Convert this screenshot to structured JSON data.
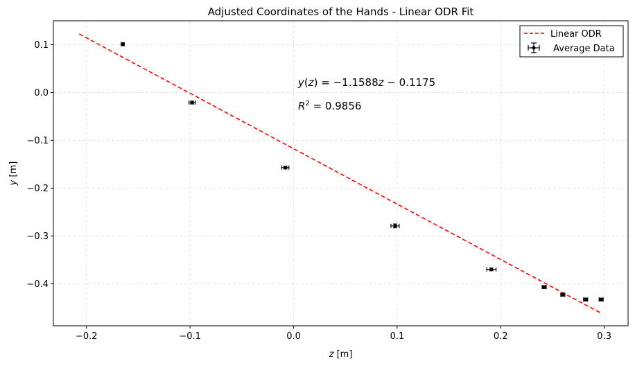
{
  "chart_data": {
    "type": "scatter",
    "title": "Adjusted Coordinates of the Hands - Linear ODR Fit",
    "xlabel_var": "z",
    "xlabel_unit": " [m]",
    "ylabel_var": "y",
    "ylabel_unit": " [m]",
    "xlim": [
      -0.232,
      0.323
    ],
    "ylim": [
      -0.488,
      0.15
    ],
    "xticks": [
      -0.2,
      -0.1,
      0.0,
      0.1,
      0.2,
      0.3
    ],
    "xtick_labels": [
      "−0.2",
      "−0.1",
      "0.0",
      "0.1",
      "0.2",
      "0.3"
    ],
    "yticks": [
      0.1,
      0.0,
      -0.1,
      -0.2,
      -0.3,
      -0.4
    ],
    "ytick_labels": [
      "0.1",
      "0.0",
      "−0.1",
      "−0.2",
      "−0.3",
      "−0.4"
    ],
    "grid": true,
    "legend_position": "top-right",
    "series": [
      {
        "name": "Linear ODR",
        "kind": "fit-line",
        "style": "dashed",
        "color": "#ff0000",
        "x": [
          -0.207,
          0.297
        ],
        "y": [
          0.1224,
          -0.4617
        ]
      },
      {
        "name": " Average Data",
        "kind": "errorbar",
        "color": "#000000",
        "x": [
          -0.165,
          -0.098,
          -0.008,
          0.098,
          0.191,
          0.242,
          0.26,
          0.282,
          0.297
        ],
        "y": [
          0.101,
          -0.021,
          -0.157,
          -0.279,
          -0.37,
          -0.407,
          -0.423,
          -0.433,
          -0.433
        ],
        "xerr": [
          0.0015,
          0.003,
          0.0035,
          0.004,
          0.0045,
          0.002,
          0.002,
          0.002,
          0.002
        ],
        "yerr": [
          0.003,
          0.003,
          0.003,
          0.004,
          0.003,
          0.003,
          0.003,
          0.003,
          0.003
        ]
      }
    ],
    "annotations": [
      {
        "prefix": "y(z) = −1.1588",
        "var": "z",
        "suffix": " − 0.1175"
      },
      {
        "prefix": "R",
        "sup": "2",
        "suffix": " = 0.9856"
      }
    ]
  }
}
